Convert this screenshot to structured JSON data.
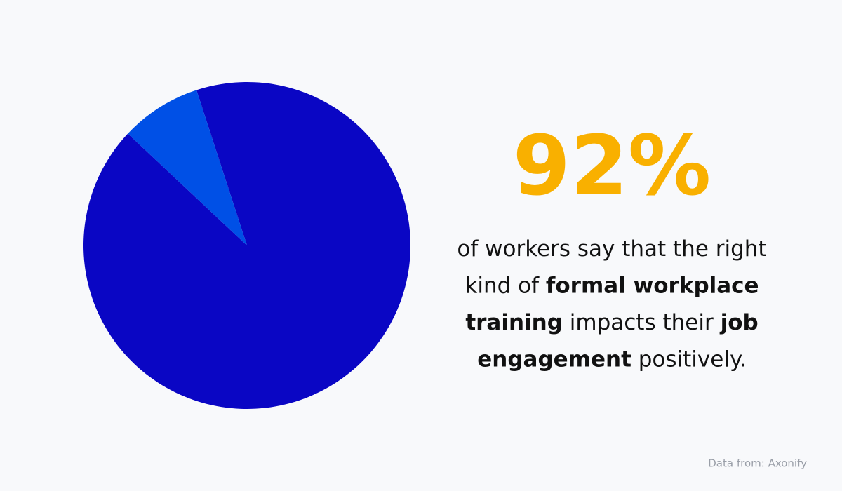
{
  "chart_data": {
    "type": "pie",
    "values": [
      92,
      8
    ],
    "value_labels": [
      "92%",
      null
    ],
    "colors": [
      "#0a06c4",
      "#0050e6"
    ],
    "label_color": "#f9b000",
    "caption_lines": [
      [
        {
          "text": "of workers say that the right",
          "bold": false
        }
      ],
      [
        {
          "text": "kind of ",
          "bold": false
        },
        {
          "text": "formal workplace",
          "bold": true
        }
      ],
      [
        {
          "text": "training",
          "bold": true
        },
        {
          "text": " impacts their ",
          "bold": false
        },
        {
          "text": "job",
          "bold": true
        }
      ],
      [
        {
          "text": "engagement",
          "bold": true
        },
        {
          "text": " positively.",
          "bold": false
        }
      ]
    ],
    "source": "Data from: Axonify"
  }
}
